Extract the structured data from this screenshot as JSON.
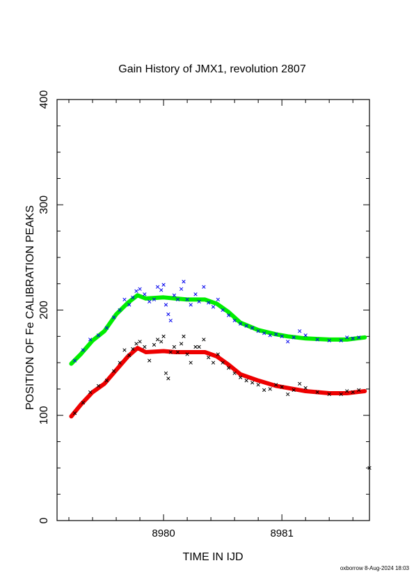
{
  "chart_data": {
    "type": "scatter",
    "title": "Gain History of JMX1, revolution 2807",
    "xlabel": "TIME IN IJD",
    "ylabel": "POSITION OF Fe CALIBRATION PEAKS",
    "xlim": [
      8979.1,
      8981.74
    ],
    "ylim": [
      0,
      400
    ],
    "x_ticks": [
      "8980",
      "8981"
    ],
    "y_ticks": [
      "0",
      "100",
      "200",
      "300",
      "400"
    ],
    "grid": false,
    "legend": "none",
    "series": [
      {
        "kind": "fit-line",
        "color": "#00ee00",
        "points": [
          [
            8979.22,
            149
          ],
          [
            8979.3,
            158
          ],
          [
            8979.4,
            171
          ],
          [
            8979.5,
            180
          ],
          [
            8979.6,
            196
          ],
          [
            8979.7,
            207
          ],
          [
            8979.78,
            214
          ],
          [
            8979.85,
            211
          ],
          [
            8980.0,
            212
          ],
          [
            8980.1,
            211
          ],
          [
            8980.2,
            210
          ],
          [
            8980.35,
            210
          ],
          [
            8980.45,
            206
          ],
          [
            8980.55,
            198
          ],
          [
            8980.65,
            188
          ],
          [
            8980.8,
            181
          ],
          [
            8980.95,
            177
          ],
          [
            8981.05,
            175
          ],
          [
            8981.2,
            173
          ],
          [
            8981.4,
            172
          ],
          [
            8981.55,
            172
          ],
          [
            8981.7,
            174
          ]
        ]
      },
      {
        "kind": "fit-line",
        "color": "#ee0000",
        "points": [
          [
            8979.22,
            99
          ],
          [
            8979.3,
            110
          ],
          [
            8979.4,
            122
          ],
          [
            8979.5,
            130
          ],
          [
            8979.6,
            143
          ],
          [
            8979.7,
            156
          ],
          [
            8979.78,
            164
          ],
          [
            8979.85,
            160
          ],
          [
            8980.0,
            161
          ],
          [
            8980.1,
            160
          ],
          [
            8980.2,
            160
          ],
          [
            8980.35,
            160
          ],
          [
            8980.45,
            156
          ],
          [
            8980.55,
            148
          ],
          [
            8980.65,
            139
          ],
          [
            8980.8,
            133
          ],
          [
            8980.95,
            128
          ],
          [
            8981.05,
            126
          ],
          [
            8981.2,
            123
          ],
          [
            8981.4,
            121
          ],
          [
            8981.55,
            121
          ],
          [
            8981.7,
            123
          ]
        ]
      },
      {
        "kind": "points",
        "color": "#0000ee",
        "points": [
          [
            8979.25,
            152
          ],
          [
            8979.32,
            162
          ],
          [
            8979.38,
            172
          ],
          [
            8979.45,
            176
          ],
          [
            8979.52,
            183
          ],
          [
            8979.58,
            193
          ],
          [
            8979.63,
            200
          ],
          [
            8979.67,
            210
          ],
          [
            8979.71,
            205
          ],
          [
            8979.74,
            212
          ],
          [
            8979.77,
            218
          ],
          [
            8979.8,
            220
          ],
          [
            8979.84,
            215
          ],
          [
            8979.88,
            208
          ],
          [
            8979.92,
            210
          ],
          [
            8979.95,
            222
          ],
          [
            8979.98,
            219
          ],
          [
            8980.0,
            224
          ],
          [
            8980.02,
            205
          ],
          [
            8980.04,
            196
          ],
          [
            8980.06,
            190
          ],
          [
            8980.09,
            214
          ],
          [
            8980.12,
            210
          ],
          [
            8980.15,
            220
          ],
          [
            8980.17,
            227
          ],
          [
            8980.2,
            210
          ],
          [
            8980.23,
            205
          ],
          [
            8980.27,
            215
          ],
          [
            8980.3,
            208
          ],
          [
            8980.34,
            222
          ],
          [
            8980.38,
            207
          ],
          [
            8980.42,
            203
          ],
          [
            8980.46,
            210
          ],
          [
            8980.5,
            200
          ],
          [
            8980.55,
            195
          ],
          [
            8980.6,
            190
          ],
          [
            8980.65,
            187
          ],
          [
            8980.7,
            185
          ],
          [
            8980.75,
            183
          ],
          [
            8980.8,
            180
          ],
          [
            8980.85,
            178
          ],
          [
            8980.9,
            176
          ],
          [
            8980.95,
            177
          ],
          [
            8981.0,
            175
          ],
          [
            8981.05,
            170
          ],
          [
            8981.1,
            174
          ],
          [
            8981.15,
            180
          ],
          [
            8981.2,
            176
          ],
          [
            8981.3,
            172
          ],
          [
            8981.4,
            171
          ],
          [
            8981.5,
            171
          ],
          [
            8981.55,
            174
          ],
          [
            8981.6,
            173
          ],
          [
            8981.65,
            174
          ]
        ]
      },
      {
        "kind": "points",
        "color": "#000000",
        "points": [
          [
            8979.25,
            102
          ],
          [
            8979.32,
            112
          ],
          [
            8979.38,
            122
          ],
          [
            8979.45,
            128
          ],
          [
            8979.52,
            133
          ],
          [
            8979.58,
            142
          ],
          [
            8979.63,
            150
          ],
          [
            8979.67,
            162
          ],
          [
            8979.71,
            157
          ],
          [
            8979.74,
            163
          ],
          [
            8979.77,
            168
          ],
          [
            8979.8,
            170
          ],
          [
            8979.84,
            165
          ],
          [
            8979.88,
            152
          ],
          [
            8979.92,
            167
          ],
          [
            8979.95,
            172
          ],
          [
            8979.98,
            170
          ],
          [
            8980.0,
            175
          ],
          [
            8980.02,
            140
          ],
          [
            8980.04,
            135
          ],
          [
            8980.06,
            160
          ],
          [
            8980.09,
            165
          ],
          [
            8980.12,
            160
          ],
          [
            8980.15,
            168
          ],
          [
            8980.17,
            175
          ],
          [
            8980.2,
            158
          ],
          [
            8980.23,
            150
          ],
          [
            8980.27,
            165
          ],
          [
            8980.3,
            165
          ],
          [
            8980.34,
            172
          ],
          [
            8980.38,
            155
          ],
          [
            8980.42,
            150
          ],
          [
            8980.46,
            158
          ],
          [
            8980.5,
            150
          ],
          [
            8980.55,
            145
          ],
          [
            8980.6,
            140
          ],
          [
            8980.65,
            136
          ],
          [
            8980.7,
            133
          ],
          [
            8980.75,
            131
          ],
          [
            8980.8,
            129
          ],
          [
            8980.85,
            124
          ],
          [
            8980.9,
            125
          ],
          [
            8980.95,
            129
          ],
          [
            8981.0,
            127
          ],
          [
            8981.05,
            120
          ],
          [
            8981.1,
            124
          ],
          [
            8981.15,
            130
          ],
          [
            8981.2,
            126
          ],
          [
            8981.3,
            122
          ],
          [
            8981.4,
            120
          ],
          [
            8981.5,
            120
          ],
          [
            8981.55,
            123
          ],
          [
            8981.6,
            122
          ],
          [
            8981.65,
            124
          ],
          [
            8981.74,
            50
          ]
        ]
      }
    ]
  },
  "footer": {
    "credit": "oxborrow  8-Aug-2024 18:03"
  }
}
